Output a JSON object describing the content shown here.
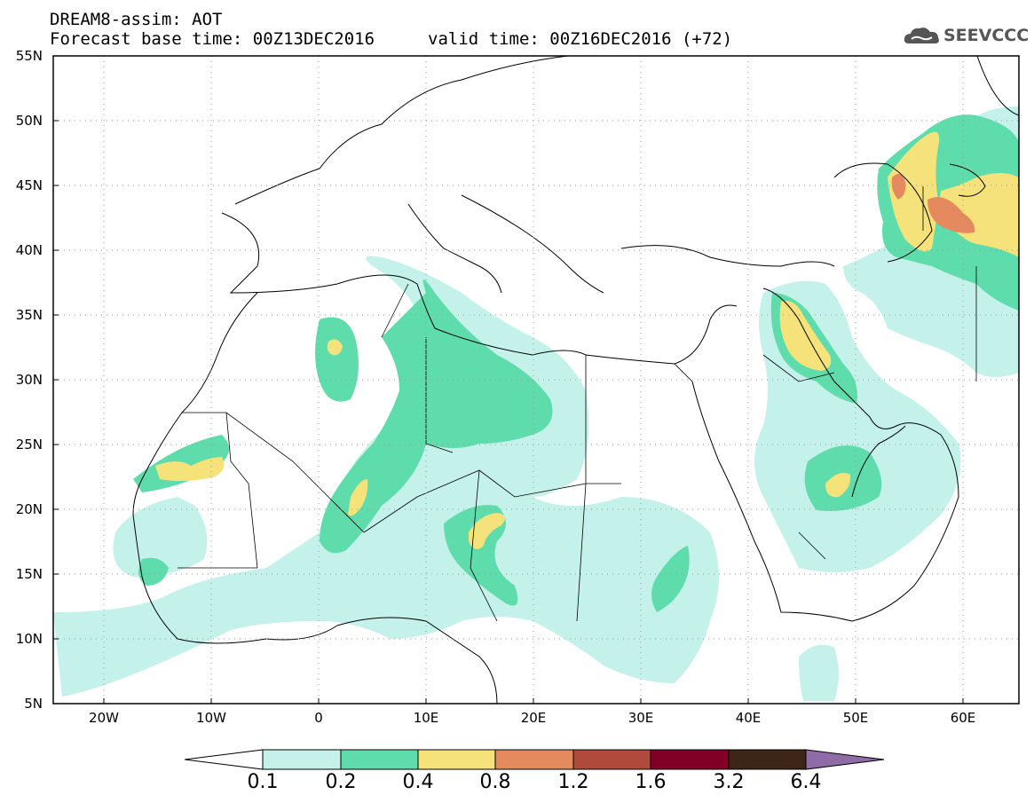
{
  "title": {
    "line1": "DREAM8-assim: AOT",
    "line2": "Forecast base time: 00Z13DEC2016",
    "valid": "valid time: 00Z16DEC2016 (+72)"
  },
  "logo": {
    "text": "SEEVCCC",
    "icon": "cloud-icon"
  },
  "map": {
    "lon_range": [
      -25,
      65
    ],
    "lat_range": [
      5,
      55
    ],
    "grid": "dotted",
    "lat_labels": [
      "55N",
      "50N",
      "45N",
      "40N",
      "35N",
      "30N",
      "25N",
      "20N",
      "15N",
      "10N",
      "5N"
    ],
    "lon_labels": [
      "20W",
      "10W",
      "0",
      "10E",
      "20E",
      "30E",
      "40E",
      "50E",
      "60E"
    ]
  },
  "colorbar": {
    "labels": [
      "0.1",
      "0.2",
      "0.4",
      "0.8",
      "1.2",
      "1.6",
      "3.2",
      "6.4"
    ],
    "colors": [
      "#c4f1ea",
      "#5fdcab",
      "#f5e27a",
      "#e48a5e",
      "#b04a3c",
      "#800026",
      "#3d2617",
      "#8f6ca8"
    ],
    "below_color": "#ffffff"
  }
}
